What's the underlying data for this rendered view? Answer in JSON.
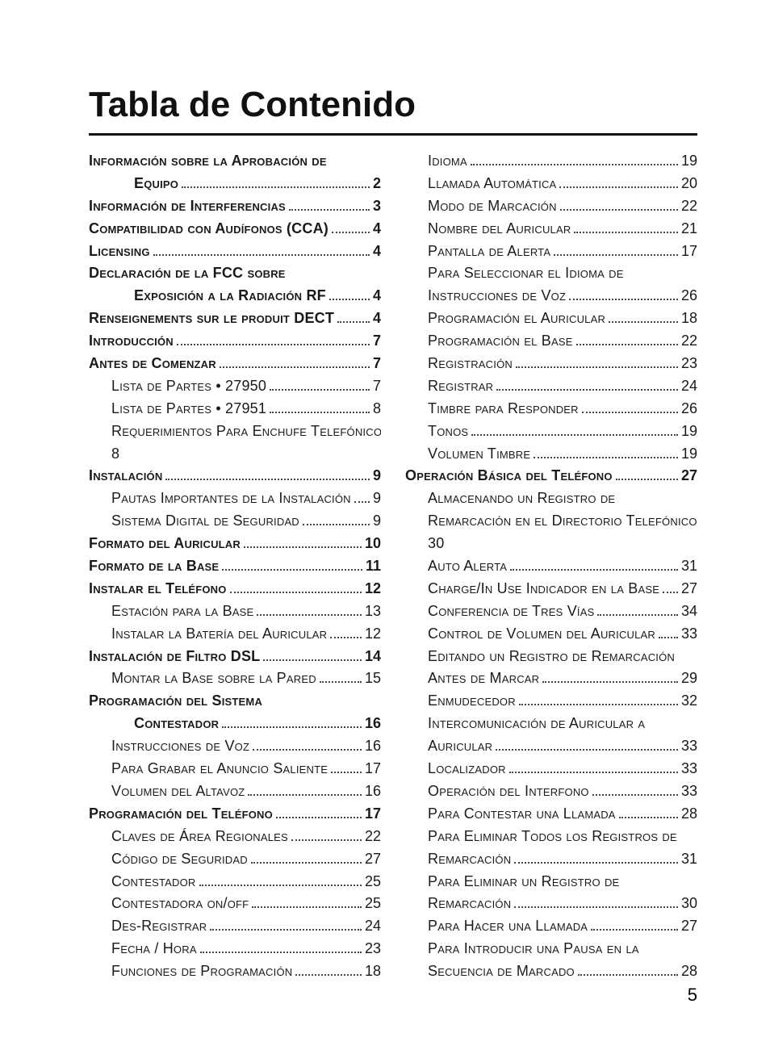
{
  "title": "Tabla de Contenido",
  "page_number": "5",
  "columns": [
    [
      {
        "label": "Información sobre la Aprobación de",
        "level": 0,
        "bold": true,
        "page": null,
        "continuation": true
      },
      {
        "label": "Equipo",
        "level": 2,
        "bold": true,
        "page": "2"
      },
      {
        "label": "Información de Interferencias",
        "level": 0,
        "bold": true,
        "page": "3"
      },
      {
        "label": "Compatibilidad con Audífonos (CCA)",
        "level": 0,
        "bold": true,
        "page": "4"
      },
      {
        "label": "Licensing",
        "level": 0,
        "bold": true,
        "page": "4"
      },
      {
        "label": "Declaración de la FCC sobre",
        "level": 0,
        "bold": true,
        "page": null,
        "continuation": true
      },
      {
        "label": "Exposición a la Radiación RF",
        "level": 2,
        "bold": true,
        "page": "4"
      },
      {
        "label": "Renseignements sur le produit DECT",
        "level": 0,
        "bold": true,
        "page": "4"
      },
      {
        "label": "Introducción",
        "level": 0,
        "bold": true,
        "page": "7"
      },
      {
        "label": "Antes de Comenzar",
        "level": 0,
        "bold": true,
        "page": "7"
      },
      {
        "label": "Lista de Partes • 27950",
        "level": 1,
        "bold": false,
        "page": "7"
      },
      {
        "label": "Lista de Partes • 27951",
        "level": 1,
        "bold": false,
        "page": "8"
      },
      {
        "label": "Requerimientos Para Enchufe Telefónico",
        "level": 1,
        "bold": false,
        "page": null,
        "continuation": true
      },
      {
        "label": "8",
        "level": 1,
        "bold": false,
        "page": null,
        "raw": true
      },
      {
        "label": "Instalación",
        "level": 0,
        "bold": true,
        "page": "9"
      },
      {
        "label": "Pautas Importantes de la Instalación",
        "level": 1,
        "bold": false,
        "page": "9"
      },
      {
        "label": "Sistema Digital de Seguridad",
        "level": 1,
        "bold": false,
        "page": "9"
      },
      {
        "label": "Formato del Auricular",
        "level": 0,
        "bold": true,
        "page": "10"
      },
      {
        "label": "Formato de la Base",
        "level": 0,
        "bold": true,
        "page": "11"
      },
      {
        "label": "Instalar el Teléfono",
        "level": 0,
        "bold": true,
        "page": "12"
      },
      {
        "label": "Estación para la Base",
        "level": 1,
        "bold": false,
        "page": "13"
      },
      {
        "label": "Instalar la Batería del Auricular",
        "level": 1,
        "bold": false,
        "page": "12"
      },
      {
        "label": "Instalación de Filtro DSL",
        "level": 0,
        "bold": true,
        "page": "14"
      },
      {
        "label": "Montar la Base sobre la Pared",
        "level": 1,
        "bold": false,
        "page": "15"
      },
      {
        "label": "Programación del Sistema",
        "level": 0,
        "bold": true,
        "page": null,
        "continuation": true
      },
      {
        "label": "Contestador",
        "level": 2,
        "bold": true,
        "page": "16"
      },
      {
        "label": "Instrucciones de Voz",
        "level": 1,
        "bold": false,
        "page": "16"
      },
      {
        "label": "Para Grabar el Anuncio Saliente",
        "level": 1,
        "bold": false,
        "page": "17"
      },
      {
        "label": "Volumen del Altavoz",
        "level": 1,
        "bold": false,
        "page": "16"
      },
      {
        "label": "Programación del Teléfono",
        "level": 0,
        "bold": true,
        "page": "17"
      },
      {
        "label": "Claves de Área Regionales",
        "level": 1,
        "bold": false,
        "page": "22"
      },
      {
        "label": "Código de Seguridad",
        "level": 1,
        "bold": false,
        "page": "27"
      },
      {
        "label": "Contestador",
        "level": 1,
        "bold": false,
        "page": "25"
      },
      {
        "label": "Contestadora on/off",
        "level": 1,
        "bold": false,
        "page": "25"
      },
      {
        "label": "Des-Registrar",
        "level": 1,
        "bold": false,
        "page": "24"
      },
      {
        "label": "Fecha / Hora",
        "level": 1,
        "bold": false,
        "page": "23"
      },
      {
        "label": "Funciones de Programación",
        "level": 1,
        "bold": false,
        "page": "18"
      }
    ],
    [
      {
        "label": "Idioma",
        "level": 1,
        "bold": false,
        "page": "19"
      },
      {
        "label": "Llamada Automática",
        "level": 1,
        "bold": false,
        "page": "20"
      },
      {
        "label": "Modo de Marcación",
        "level": 1,
        "bold": false,
        "page": "22"
      },
      {
        "label": "Nombre del Auricular",
        "level": 1,
        "bold": false,
        "page": "21"
      },
      {
        "label": "Pantalla de Alerta",
        "level": 1,
        "bold": false,
        "page": "17"
      },
      {
        "label": "Para Seleccionar el Idioma de",
        "level": 1,
        "bold": false,
        "page": null,
        "continuation": true
      },
      {
        "label": "Instrucciones de Voz",
        "level": 1,
        "bold": false,
        "page": "26"
      },
      {
        "label": "Programación el Auricular",
        "level": 1,
        "bold": false,
        "page": "18"
      },
      {
        "label": "Programación el Base",
        "level": 1,
        "bold": false,
        "page": "22"
      },
      {
        "label": "Registración",
        "level": 1,
        "bold": false,
        "page": "23"
      },
      {
        "label": "Registrar",
        "level": 1,
        "bold": false,
        "page": "24"
      },
      {
        "label": "Timbre para Responder",
        "level": 1,
        "bold": false,
        "page": "26"
      },
      {
        "label": "Tonos",
        "level": 1,
        "bold": false,
        "page": "19"
      },
      {
        "label": "Volumen Timbre",
        "level": 1,
        "bold": false,
        "page": "19"
      },
      {
        "label": "Operación Básica del Teléfono",
        "level": 0,
        "bold": true,
        "page": "27"
      },
      {
        "label": "Almacenando un Registro de",
        "level": 1,
        "bold": false,
        "page": null,
        "continuation": true
      },
      {
        "label": "Remarcación en el Directorio Telefónico.",
        "level": 1,
        "bold": false,
        "page": null,
        "continuation": true
      },
      {
        "label": "30",
        "level": 1,
        "bold": false,
        "page": null,
        "raw": true
      },
      {
        "label": "Auto Alerta",
        "level": 1,
        "bold": false,
        "page": "31"
      },
      {
        "label": "Charge/In Use Indicador en la Base",
        "level": 1,
        "bold": false,
        "page": "27"
      },
      {
        "label": "Conferencia de Tres Vías",
        "level": 1,
        "bold": false,
        "page": "34"
      },
      {
        "label": "Control de Volumen del Auricular",
        "level": 1,
        "bold": false,
        "page": "33"
      },
      {
        "label": "Editando un Registro de Remarcación",
        "level": 1,
        "bold": false,
        "page": null,
        "continuation": true
      },
      {
        "label": "Antes de Marcar",
        "level": 1,
        "bold": false,
        "page": "29"
      },
      {
        "label": "Enmudecedor",
        "level": 1,
        "bold": false,
        "page": "32"
      },
      {
        "label": "Intercomunicación de Auricular a",
        "level": 1,
        "bold": false,
        "page": null,
        "continuation": true
      },
      {
        "label": "Auricular",
        "level": 1,
        "bold": false,
        "page": "33"
      },
      {
        "label": "Localizador",
        "level": 1,
        "bold": false,
        "page": "33"
      },
      {
        "label": "Operación del Interfono",
        "level": 1,
        "bold": false,
        "page": "33"
      },
      {
        "label": "Para Contestar una Llamada",
        "level": 1,
        "bold": false,
        "page": "28"
      },
      {
        "label": "Para Eliminar Todos los Registros de",
        "level": 1,
        "bold": false,
        "page": null,
        "continuation": true
      },
      {
        "label": "Remarcación",
        "level": 1,
        "bold": false,
        "page": "31"
      },
      {
        "label": "Para Eliminar un Registro de",
        "level": 1,
        "bold": false,
        "page": null,
        "continuation": true
      },
      {
        "label": "Remarcación",
        "level": 1,
        "bold": false,
        "page": "30"
      },
      {
        "label": "Para Hacer una Llamada",
        "level": 1,
        "bold": false,
        "page": "27"
      },
      {
        "label": "Para Introducir una Pausa en la",
        "level": 1,
        "bold": false,
        "page": null,
        "continuation": true
      },
      {
        "label": "Secuencia de Marcado",
        "level": 1,
        "bold": false,
        "page": "28"
      }
    ]
  ]
}
